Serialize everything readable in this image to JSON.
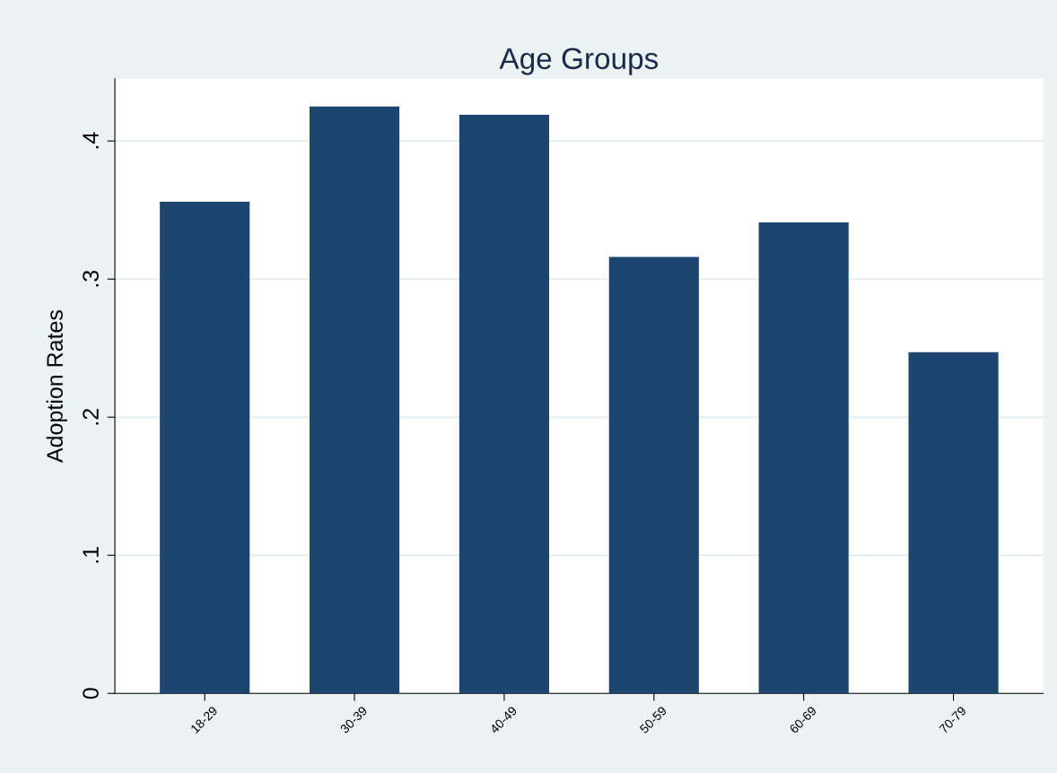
{
  "chart_data": {
    "type": "bar",
    "title": "Age Groups",
    "ylabel": "Adoption Rates",
    "categories": [
      "18-29",
      "30-39",
      "40-49",
      "50-59",
      "60-69",
      "70-79"
    ],
    "values": [
      0.356,
      0.425,
      0.419,
      0.316,
      0.341,
      0.247
    ],
    "color": "#1c4670",
    "ylim": [
      0,
      0.445
    ],
    "yticks": [
      0,
      {
        "value": 0.1,
        "label": ".1"
      },
      {
        "value": 0.2,
        "label": ".2"
      },
      {
        "value": 0.3,
        "label": ".3"
      },
      {
        "value": 0.4,
        "label": ".4"
      }
    ],
    "grid": "y",
    "legend": false
  }
}
